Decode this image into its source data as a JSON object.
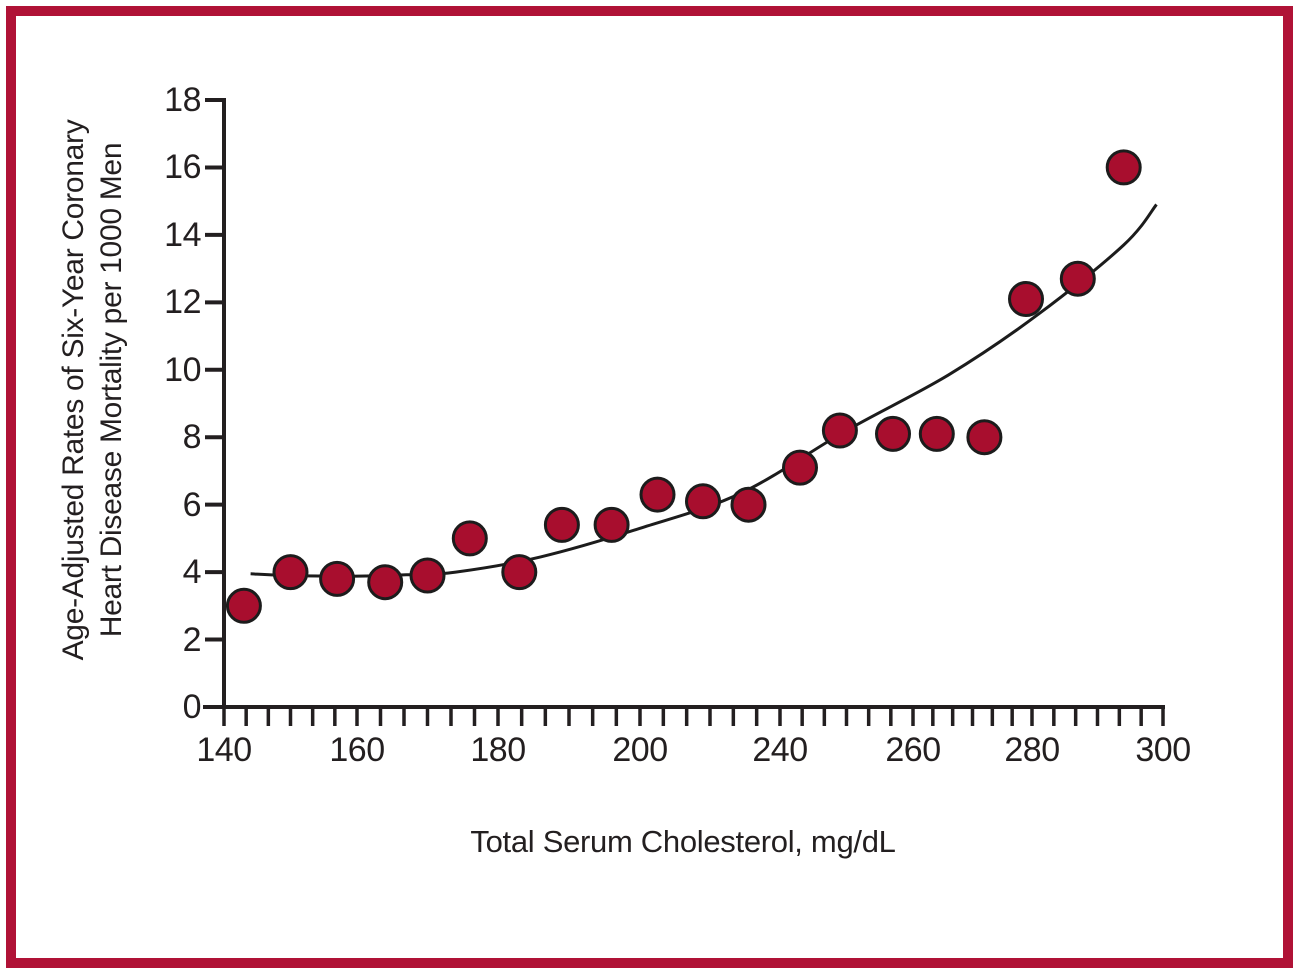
{
  "colors": {
    "frame_border": "#b01236",
    "point_fill": "#a80e2e",
    "point_stroke": "#1c1c1c",
    "curve": "#1c1c1c",
    "axis": "#231f20",
    "text": "#231f20",
    "background": "#ffffff"
  },
  "chart_data": {
    "type": "scatter",
    "title": "",
    "xlabel": "Total Serum Cholesterol, mg/dL",
    "ylabel_line1": "Age-Adjusted Rates of Six-Year Coronary",
    "ylabel_line2": "Heart Disease Mortality per 1000 Men",
    "x_tick_labels": [
      "140",
      "160",
      "180",
      "200",
      "240",
      "260",
      "280",
      "300"
    ],
    "y_tick_labels": [
      "0",
      "2",
      "4",
      "6",
      "8",
      "10",
      "12",
      "14",
      "16",
      "18"
    ],
    "ylim": [
      0,
      18
    ],
    "grid": "off",
    "legend": "none",
    "minor_x_intervals_per_segment": 6,
    "points": [
      [
        143,
        3.0
      ],
      [
        150,
        4.0
      ],
      [
        157,
        3.8
      ],
      [
        164,
        3.7
      ],
      [
        170,
        3.9
      ],
      [
        176,
        5.0
      ],
      [
        183,
        4.0
      ],
      [
        189,
        5.4
      ],
      [
        196,
        5.4
      ],
      [
        205,
        6.3
      ],
      [
        218,
        6.1
      ],
      [
        231,
        6.0
      ],
      [
        243,
        7.1
      ],
      [
        249,
        8.2
      ],
      [
        257,
        8.1
      ],
      [
        264,
        8.1
      ],
      [
        272,
        8.0
      ],
      [
        279,
        12.1
      ],
      [
        287,
        12.7
      ],
      [
        294,
        16.0
      ]
    ],
    "trend_line": [
      [
        144,
        3.95
      ],
      [
        150,
        3.9
      ],
      [
        159,
        3.88
      ],
      [
        167,
        3.92
      ],
      [
        174,
        4.0
      ],
      [
        186,
        4.45
      ],
      [
        200,
        5.3
      ],
      [
        229,
        6.35
      ],
      [
        250,
        8.2
      ],
      [
        266,
        9.85
      ],
      [
        281,
        11.65
      ],
      [
        294,
        13.7
      ],
      [
        299,
        14.9
      ]
    ]
  }
}
